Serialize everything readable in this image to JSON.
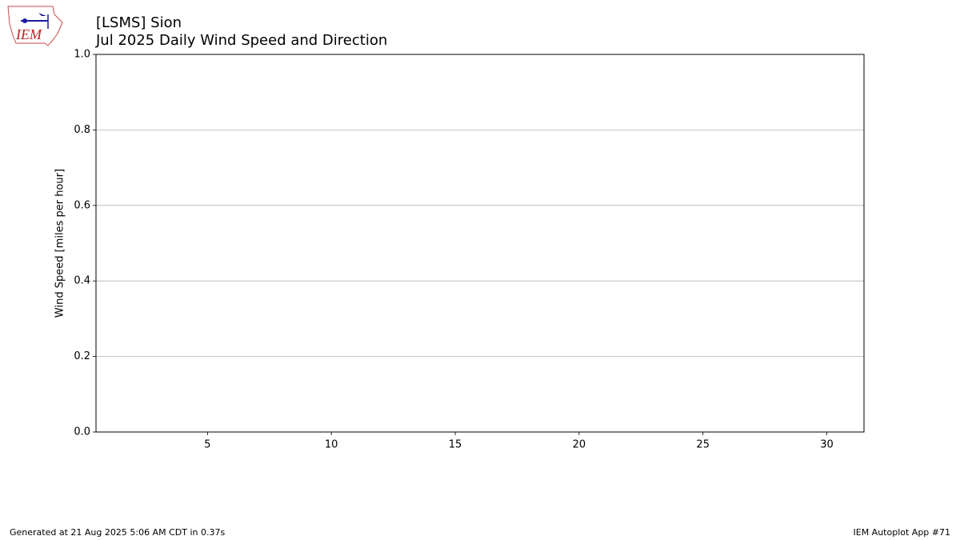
{
  "chart_data": {
    "type": "line",
    "title": "[LSMS] Sion",
    "subtitle": "Jul 2025 Daily Wind Speed and Direction",
    "ylabel": "Wind Speed [miles per hour]",
    "xlim": [
      0.5,
      31.5
    ],
    "xticks": [
      5,
      10,
      15,
      20,
      25,
      30
    ],
    "ylim": [
      0,
      1
    ],
    "yticks": [
      {
        "value": 0,
        "label": "0.0"
      },
      {
        "value": 0.2,
        "label": "0.2"
      },
      {
        "value": 0.4,
        "label": "0.4"
      },
      {
        "value": 0.6,
        "label": "0.6"
      },
      {
        "value": 0.8,
        "label": "0.8"
      },
      {
        "value": 1,
        "label": "1.0"
      }
    ],
    "grid": true,
    "series": [],
    "logo": "IEM",
    "footer_left": "Generated at 21 Aug 2025 5:06 AM CDT in 0.37s",
    "footer_right": "IEM Autoplot App #71"
  }
}
